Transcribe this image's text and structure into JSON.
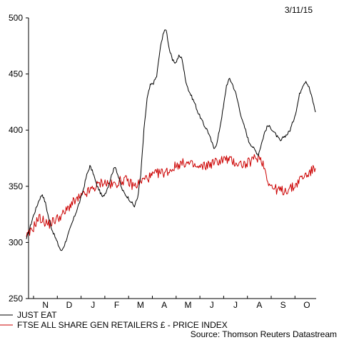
{
  "date": "3/11/15",
  "source": "Source: Thomson Reuters Datastream",
  "chart_data": {
    "type": "line",
    "ylim": [
      250,
      500
    ],
    "yticks": [
      250,
      300,
      350,
      400,
      450,
      500
    ],
    "ytick_labels": [
      "250",
      "300",
      "350",
      "400",
      "450",
      "500"
    ],
    "month_labels": [
      "N",
      "D",
      "J",
      "F",
      "M",
      "A",
      "M",
      "J",
      "J",
      "A",
      "S",
      "O"
    ],
    "grid": false,
    "legend_position": "bottom-left",
    "series": [
      {
        "name": "JUST EAT",
        "color": "#000000",
        "values": [
          303,
          312,
          322,
          330,
          338,
          343,
          335,
          322,
          312,
          305,
          298,
          292,
          298,
          306,
          314,
          322,
          330,
          338,
          348,
          360,
          368,
          362,
          352,
          346,
          340,
          345,
          352,
          362,
          368,
          358,
          348,
          343,
          340,
          336,
          332,
          340,
          360,
          400,
          428,
          440,
          442,
          448,
          470,
          486,
          490,
          472,
          462,
          460,
          466,
          464,
          446,
          436,
          430,
          424,
          416,
          410,
          404,
          400,
          392,
          384,
          388,
          404,
          420,
          440,
          446,
          440,
          432,
          420,
          408,
          400,
          390,
          386,
          382,
          378,
          388,
          398,
          404,
          402,
          398,
          394,
          390,
          394,
          396,
          400,
          408,
          418,
          432,
          440,
          444,
          438,
          428,
          416
        ]
      },
      {
        "name": "FTSE ALL SHARE GEN RETAILERS £ - PRICE INDEX",
        "color": "#cc0000",
        "values": [
          305,
          308,
          312,
          318,
          322,
          320,
          318,
          316,
          318,
          320,
          322,
          324,
          326,
          330,
          334,
          336,
          338,
          340,
          342,
          344,
          346,
          348,
          350,
          352,
          354,
          353,
          352,
          351,
          352,
          354,
          355,
          356,
          354,
          352,
          350,
          352,
          354,
          356,
          358,
          358,
          360,
          361,
          362,
          362,
          363,
          364,
          366,
          368,
          370,
          370,
          371,
          370,
          369,
          368,
          366,
          367,
          368,
          369,
          370,
          371,
          372,
          373,
          374,
          374,
          373,
          372,
          371,
          370,
          370,
          369,
          371,
          373,
          375,
          376,
          374,
          366,
          356,
          350,
          348,
          347,
          346,
          346,
          347,
          348,
          349,
          352,
          356,
          358,
          360,
          362,
          364,
          366
        ]
      }
    ]
  }
}
